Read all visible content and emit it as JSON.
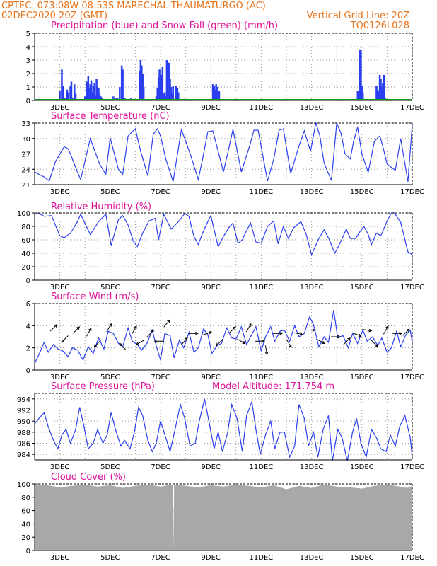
{
  "header": {
    "line1": "CPTEC:   073:08W-08:53S  MARECHAL THAUMATURGO (AC)",
    "line2_left": "02DEC2020 20Z (GMT)",
    "line2_right": "Vertical Grid Line: 20Z",
    "line3_right": "TQ0126L028"
  },
  "colors": {
    "header": "#e8731a",
    "panel_title": "#e0109a",
    "line": "#2a3ff0",
    "bar": "#2a3ff0",
    "snow": "#119911",
    "cloud": "#a8a8a8",
    "arrow": "#000000",
    "grid": "#9a9a9a"
  },
  "chart_data": [
    {
      "type": "bar",
      "title": "Precipitation (blue) and Snow Fall (green) (mm/h)",
      "ylim": [
        0,
        5
      ],
      "yticks": [
        0,
        1,
        2,
        3,
        4,
        5
      ],
      "xticks": [
        "3DEC",
        "5DEC",
        "7DEC",
        "9DEC",
        "11DEC",
        "13DEC",
        "15DEC",
        "17DEC"
      ],
      "grid": true,
      "series": [
        {
          "name": "Precipitation",
          "x": [
            2.92,
            3.0,
            3.08,
            3.13,
            3.21,
            3.29,
            3.33,
            3.42,
            3.46,
            3.5,
            3.58,
            3.63,
            4.0,
            4.08,
            4.13,
            4.17,
            4.21,
            4.25,
            4.29,
            4.33,
            4.38,
            4.42,
            4.46,
            4.5,
            4.54,
            4.58,
            4.63,
            4.67,
            5.13,
            5.21,
            5.25,
            5.29,
            5.38,
            5.46,
            5.5,
            5.54,
            5.58,
            5.63,
            5.67,
            5.75,
            5.83,
            5.92,
            6.0,
            6.17,
            6.21,
            6.25,
            6.29,
            6.33,
            6.38,
            6.42,
            6.83,
            6.88,
            6.92,
            6.96,
            7.0,
            7.04,
            7.08,
            7.13,
            7.17,
            7.21,
            7.25,
            7.29,
            7.33,
            7.38,
            7.42,
            7.46,
            7.5,
            7.54,
            7.58,
            7.62,
            7.67,
            7.71,
            9.08,
            9.13,
            9.17,
            9.21,
            9.25,
            9.33,
            14.83,
            14.88,
            14.92,
            14.96,
            15.0,
            15.04,
            15.08,
            15.58,
            15.62,
            15.67,
            15.71,
            15.75,
            15.79,
            15.83,
            15.88,
            15.92
          ],
          "values": [
            0.1,
            0.7,
            2.3,
            1.1,
            0.2,
            0.8,
            0.6,
            1.1,
            1.4,
            0.2,
            1.2,
            0.5,
            0.3,
            1.4,
            1.8,
            0.9,
            1.2,
            1.5,
            0.6,
            1.1,
            1.3,
            0.4,
            1.6,
            1.0,
            0.9,
            0.5,
            0.3,
            0.2,
            0.3,
            0.1,
            0.2,
            0.2,
            1.0,
            2.6,
            2.3,
            0.2,
            0.2,
            0.1,
            0.1,
            0.1,
            0.2,
            0.1,
            0.1,
            2.2,
            3.0,
            2.6,
            2.0,
            1.0,
            0.1,
            0.1,
            0.3,
            0.9,
            1.7,
            2.3,
            1.9,
            1.9,
            2.5,
            0.5,
            0.6,
            0.3,
            3.0,
            0.4,
            2.8,
            1.6,
            1.0,
            0.5,
            1.1,
            0.1,
            0.1,
            1.1,
            0.9,
            0.6,
            1.2,
            1.1,
            0.8,
            1.2,
            1.0,
            0.7,
            0.7,
            0.3,
            3.8,
            3.7,
            1.1,
            0.6,
            0.1,
            1.1,
            0.8,
            0.7,
            1.9,
            1.6,
            1.0,
            1.3,
            1.9,
            0.2
          ]
        },
        {
          "name": "Snow Fall",
          "x": [
            2,
            17
          ],
          "values": [
            0,
            0
          ]
        }
      ]
    },
    {
      "type": "line",
      "title": "Surface Temperature (nC)",
      "ylim": [
        21,
        33
      ],
      "yticks": [
        21,
        24,
        27,
        30,
        33
      ],
      "xticks": [
        "3DEC",
        "5DEC",
        "7DEC",
        "9DEC",
        "11DEC",
        "13DEC",
        "15DEC",
        "17DEC"
      ],
      "grid": true,
      "x": [
        2.0,
        2.17,
        2.38,
        2.58,
        2.83,
        3.17,
        3.33,
        3.42,
        3.67,
        3.83,
        4.21,
        4.58,
        4.83,
        5.0,
        5.33,
        5.5,
        5.71,
        6.0,
        6.21,
        6.5,
        6.71,
        6.88,
        7.0,
        7.21,
        7.5,
        7.83,
        8.0,
        8.21,
        8.5,
        8.67,
        8.88,
        9.08,
        9.5,
        9.71,
        9.88,
        10.21,
        10.54,
        10.71,
        10.88,
        11.25,
        11.5,
        11.71,
        11.88,
        12.17,
        12.5,
        12.71,
        12.96,
        13.17,
        13.33,
        13.5,
        13.79,
        14.0,
        14.17,
        14.33,
        14.54,
        14.67,
        14.83,
        15.0,
        15.25,
        15.5,
        15.71,
        15.83,
        16.0,
        16.33,
        16.54,
        16.83,
        17.0
      ],
      "values": [
        23.5,
        23.0,
        22.5,
        21.7,
        25.5,
        28.4,
        28.0,
        27.0,
        23.8,
        22.0,
        30.0,
        25.0,
        23.0,
        30.1,
        24.0,
        23.0,
        30.5,
        31.9,
        27.5,
        22.7,
        30.8,
        31.9,
        30.5,
        26.0,
        21.6,
        31.7,
        29.5,
        26.5,
        22.0,
        26.0,
        31.3,
        31.5,
        23.5,
        28.0,
        31.8,
        23.5,
        28.5,
        31.6,
        31.6,
        21.7,
        26.0,
        31.6,
        31.9,
        23.2,
        28.5,
        31.5,
        27.5,
        33.1,
        30.5,
        25.2,
        21.8,
        33.0,
        31.0,
        27.0,
        26.0,
        29.5,
        32.2,
        27.0,
        23.4,
        29.5,
        30.5,
        28.5,
        25.0,
        23.8,
        30.0,
        21.6,
        32.7
      ]
    },
    {
      "type": "line",
      "title": "Relative Humidity (%)",
      "ylim": [
        0,
        100
      ],
      "yticks": [
        0,
        20,
        40,
        60,
        80,
        100
      ],
      "xticks": [
        "3DEC",
        "5DEC",
        "7DEC",
        "9DEC",
        "11DEC",
        "13DEC",
        "15DEC",
        "17DEC"
      ],
      "grid": true,
      "x": [
        2.0,
        2.17,
        2.38,
        2.67,
        3.0,
        3.17,
        3.42,
        3.67,
        3.83,
        4.21,
        4.54,
        4.83,
        5.04,
        5.33,
        5.5,
        5.71,
        5.92,
        6.08,
        6.29,
        6.54,
        6.79,
        6.92,
        7.13,
        7.42,
        7.71,
        7.96,
        8.13,
        8.33,
        8.5,
        8.67,
        8.88,
        9.0,
        9.29,
        9.5,
        9.71,
        9.88,
        10.08,
        10.25,
        10.42,
        10.58,
        10.79,
        11.0,
        11.25,
        11.5,
        11.67,
        11.88,
        12.08,
        12.29,
        12.58,
        12.79,
        13.0,
        13.29,
        13.5,
        13.71,
        13.92,
        14.17,
        14.38,
        14.54,
        14.75,
        14.92,
        15.08,
        15.25,
        15.38,
        15.58,
        15.75,
        16.0,
        16.17,
        16.29,
        16.54,
        16.83,
        17.0
      ],
      "values": [
        98,
        99,
        95,
        96,
        66,
        63,
        70,
        85,
        98,
        68,
        87,
        98,
        52,
        90,
        96,
        82,
        58,
        50,
        70,
        88,
        92,
        60,
        98,
        76,
        87,
        99,
        95,
        65,
        53,
        70,
        87,
        96,
        50,
        65,
        78,
        85,
        55,
        60,
        74,
        85,
        57,
        55,
        80,
        88,
        54,
        80,
        62,
        78,
        87,
        68,
        38,
        62,
        75,
        60,
        40,
        58,
        76,
        62,
        62,
        72,
        80,
        68,
        53,
        70,
        66,
        88,
        100,
        100,
        86,
        42,
        38
      ]
    },
    {
      "type": "line",
      "title": "Surface Wind (m/s)",
      "ylim": [
        0,
        6
      ],
      "yticks": [
        0,
        2,
        4,
        6
      ],
      "xticks": [
        "3DEC",
        "5DEC",
        "7DEC",
        "9DEC",
        "11DEC",
        "13DEC",
        "15DEC",
        "17DEC"
      ],
      "grid": true,
      "x": [
        2.0,
        2.17,
        2.38,
        2.54,
        2.75,
        2.92,
        3.13,
        3.33,
        3.5,
        3.71,
        3.92,
        4.13,
        4.33,
        4.54,
        4.75,
        4.92,
        5.13,
        5.33,
        5.5,
        5.71,
        5.88,
        6.08,
        6.25,
        6.46,
        6.67,
        6.83,
        7.0,
        7.17,
        7.38,
        7.54,
        7.75,
        7.92,
        8.13,
        8.33,
        8.5,
        8.71,
        8.88,
        9.04,
        9.25,
        9.42,
        9.63,
        9.83,
        10.0,
        10.21,
        10.42,
        10.58,
        10.79,
        11.0,
        11.17,
        11.38,
        11.54,
        11.75,
        11.92,
        12.13,
        12.33,
        12.5,
        12.71,
        12.92,
        13.08,
        13.29,
        13.5,
        13.67,
        13.88,
        14.04,
        14.25,
        14.46,
        14.63,
        14.83,
        15.04,
        15.21,
        15.42,
        15.63,
        15.79,
        16.0,
        16.17,
        16.38,
        16.54,
        16.75,
        16.92,
        17.0
      ],
      "values": [
        0.6,
        1.4,
        2.5,
        1.6,
        2.3,
        1.9,
        1.7,
        1.2,
        2.0,
        1.8,
        0.9,
        2.1,
        1.5,
        2.9,
        1.9,
        3.5,
        3.3,
        2.4,
        2.1,
        3.8,
        2.6,
        2.3,
        1.8,
        2.4,
        3.6,
        2.2,
        0.9,
        3.3,
        3.1,
        1.1,
        2.7,
        2.0,
        3.4,
        1.6,
        2.0,
        3.7,
        3.2,
        1.5,
        2.2,
        2.4,
        3.8,
        2.9,
        2.8,
        3.9,
        2.3,
        3.0,
        3.9,
        1.7,
        3.0,
        3.9,
        2.6,
        3.5,
        3.6,
        2.6,
        4.0,
        3.0,
        3.3,
        4.8,
        4.1,
        2.1,
        3.0,
        2.5,
        5.4,
        2.9,
        3.1,
        2.0,
        3.3,
        2.4,
        3.6,
        2.6,
        3.0,
        2.2,
        2.9,
        1.6,
        2.0,
        3.5,
        2.1,
        3.2,
        3.6,
        2.5
      ],
      "wind_vectors": [
        {
          "x": 2.75,
          "y": 3.8,
          "angle": -45
        },
        {
          "x": 3.2,
          "y": 2.8,
          "angle": 135
        },
        {
          "x": 3.65,
          "y": 3.6,
          "angle": -45
        },
        {
          "x": 4.15,
          "y": 3.4,
          "angle": -60
        },
        {
          "x": 4.5,
          "y": 2.4,
          "angle": 135
        },
        {
          "x": 4.95,
          "y": 3.8,
          "angle": -60
        },
        {
          "x": 5.5,
          "y": 2.1,
          "angle": -135
        },
        {
          "x": 5.95,
          "y": 3.6,
          "angle": -60
        },
        {
          "x": 6.2,
          "y": 2.5,
          "angle": 150
        },
        {
          "x": 6.6,
          "y": 3.3,
          "angle": -45
        },
        {
          "x": 6.95,
          "y": 2.6,
          "angle": 180
        },
        {
          "x": 7.25,
          "y": 4.2,
          "angle": -50
        },
        {
          "x": 7.95,
          "y": 2.6,
          "angle": -50
        },
        {
          "x": 8.3,
          "y": 3.3,
          "angle": 0
        },
        {
          "x": 8.85,
          "y": 3.3,
          "angle": -20
        },
        {
          "x": 9.35,
          "y": 2.5,
          "angle": 135
        },
        {
          "x": 9.85,
          "y": 3.6,
          "angle": -45
        },
        {
          "x": 10.2,
          "y": 2.6,
          "angle": 30
        },
        {
          "x": 10.5,
          "y": 3.8,
          "angle": -60
        },
        {
          "x": 10.95,
          "y": 2.6,
          "angle": 0
        },
        {
          "x": 11.2,
          "y": 1.8,
          "angle": 80
        },
        {
          "x": 11.65,
          "y": 3.3,
          "angle": 0
        },
        {
          "x": 12.1,
          "y": 2.4,
          "angle": 60
        },
        {
          "x": 12.45,
          "y": 3.3,
          "angle": 10
        },
        {
          "x": 12.95,
          "y": 3.6,
          "angle": 0
        },
        {
          "x": 13.35,
          "y": 2.6,
          "angle": 30
        },
        {
          "x": 13.95,
          "y": 3.0,
          "angle": 0
        },
        {
          "x": 14.4,
          "y": 2.6,
          "angle": -45
        },
        {
          "x": 14.8,
          "y": 3.2,
          "angle": 20
        },
        {
          "x": 15.2,
          "y": 3.6,
          "angle": 10
        },
        {
          "x": 15.5,
          "y": 2.4,
          "angle": 45
        },
        {
          "x": 15.95,
          "y": 3.6,
          "angle": -60
        },
        {
          "x": 16.4,
          "y": 3.3,
          "angle": 0
        },
        {
          "x": 16.75,
          "y": 3.4,
          "angle": -45
        }
      ]
    },
    {
      "type": "line",
      "title": "Surface Pressure (hPa)",
      "annotation": "Model Altitude: 171.754 m",
      "ylim": [
        983,
        995
      ],
      "yticks": [
        984,
        986,
        988,
        990,
        992,
        994
      ],
      "xticks": [
        "3DEC",
        "5DEC",
        "7DEC",
        "9DEC",
        "11DEC",
        "13DEC",
        "15DEC",
        "17DEC"
      ],
      "grid": true,
      "x": [
        2.0,
        2.17,
        2.38,
        2.54,
        2.75,
        2.92,
        3.08,
        3.25,
        3.42,
        3.63,
        3.79,
        3.96,
        4.13,
        4.33,
        4.5,
        4.71,
        4.88,
        5.04,
        5.21,
        5.42,
        5.58,
        5.79,
        5.96,
        6.13,
        6.29,
        6.5,
        6.67,
        6.83,
        7.0,
        7.21,
        7.38,
        7.58,
        7.79,
        7.96,
        8.17,
        8.38,
        8.54,
        8.75,
        8.92,
        9.13,
        9.29,
        9.46,
        9.67,
        9.83,
        10.04,
        10.25,
        10.42,
        10.63,
        10.79,
        10.96,
        11.17,
        11.38,
        11.54,
        11.75,
        11.92,
        12.13,
        12.33,
        12.5,
        12.71,
        12.88,
        13.08,
        13.25,
        13.46,
        13.67,
        13.83,
        14.04,
        14.21,
        14.42,
        14.63,
        14.79,
        14.96,
        15.17,
        15.38,
        15.58,
        15.75,
        15.96,
        16.13,
        16.33,
        16.5,
        16.71,
        16.92,
        17.0
      ],
      "values": [
        989.5,
        990.5,
        991.5,
        989.0,
        986.5,
        985.0,
        987.5,
        988.5,
        986.0,
        988.5,
        992.5,
        989.0,
        985.0,
        986.0,
        988.5,
        986.0,
        987.5,
        991.5,
        988.5,
        985.5,
        986.5,
        985.0,
        988.0,
        992.5,
        991.0,
        986.5,
        984.5,
        986.0,
        990.0,
        987.0,
        984.5,
        988.5,
        993.0,
        990.5,
        985.5,
        986.0,
        990.0,
        994.0,
        990.0,
        985.0,
        988.0,
        984.5,
        988.0,
        993.0,
        990.5,
        984.5,
        991.0,
        993.5,
        988.5,
        984.0,
        987.5,
        990.0,
        985.0,
        988.0,
        988.0,
        983.5,
        985.5,
        993.0,
        990.5,
        985.5,
        988.0,
        983.5,
        988.5,
        991.0,
        982.8,
        988.5,
        987.0,
        982.8,
        988.0,
        990.5,
        986.0,
        983.5,
        988.5,
        987.0,
        985.0,
        984.5,
        987.5,
        985.5,
        989.0,
        991.0,
        987.0,
        983.5
      ]
    },
    {
      "type": "area",
      "title": "Cloud Cover (%)",
      "ylim": [
        0,
        100
      ],
      "yticks": [
        0,
        20,
        40,
        60,
        80,
        100
      ],
      "xticks": [
        "3DEC",
        "5DEC",
        "7DEC",
        "9DEC",
        "11DEC",
        "13DEC",
        "15DEC",
        "17DEC"
      ],
      "grid": true,
      "x": [
        2.0,
        2.5,
        3.0,
        3.5,
        4.0,
        4.5,
        5.0,
        5.5,
        6.0,
        6.5,
        7.0,
        7.5,
        7.52,
        7.54,
        8.0,
        8.5,
        9.0,
        9.5,
        10.0,
        10.5,
        11.0,
        11.5,
        12.0,
        12.5,
        13.0,
        13.5,
        14.0,
        14.5,
        15.0,
        15.5,
        16.0,
        16.5,
        16.8,
        17.0
      ],
      "values": [
        99,
        98,
        95,
        97,
        99,
        96,
        98,
        94,
        97,
        99,
        96,
        99,
        2,
        99,
        97,
        95,
        98,
        96,
        99,
        97,
        95,
        98,
        92,
        97,
        94,
        99,
        96,
        95,
        93,
        97,
        99,
        96,
        94,
        97
      ]
    }
  ]
}
